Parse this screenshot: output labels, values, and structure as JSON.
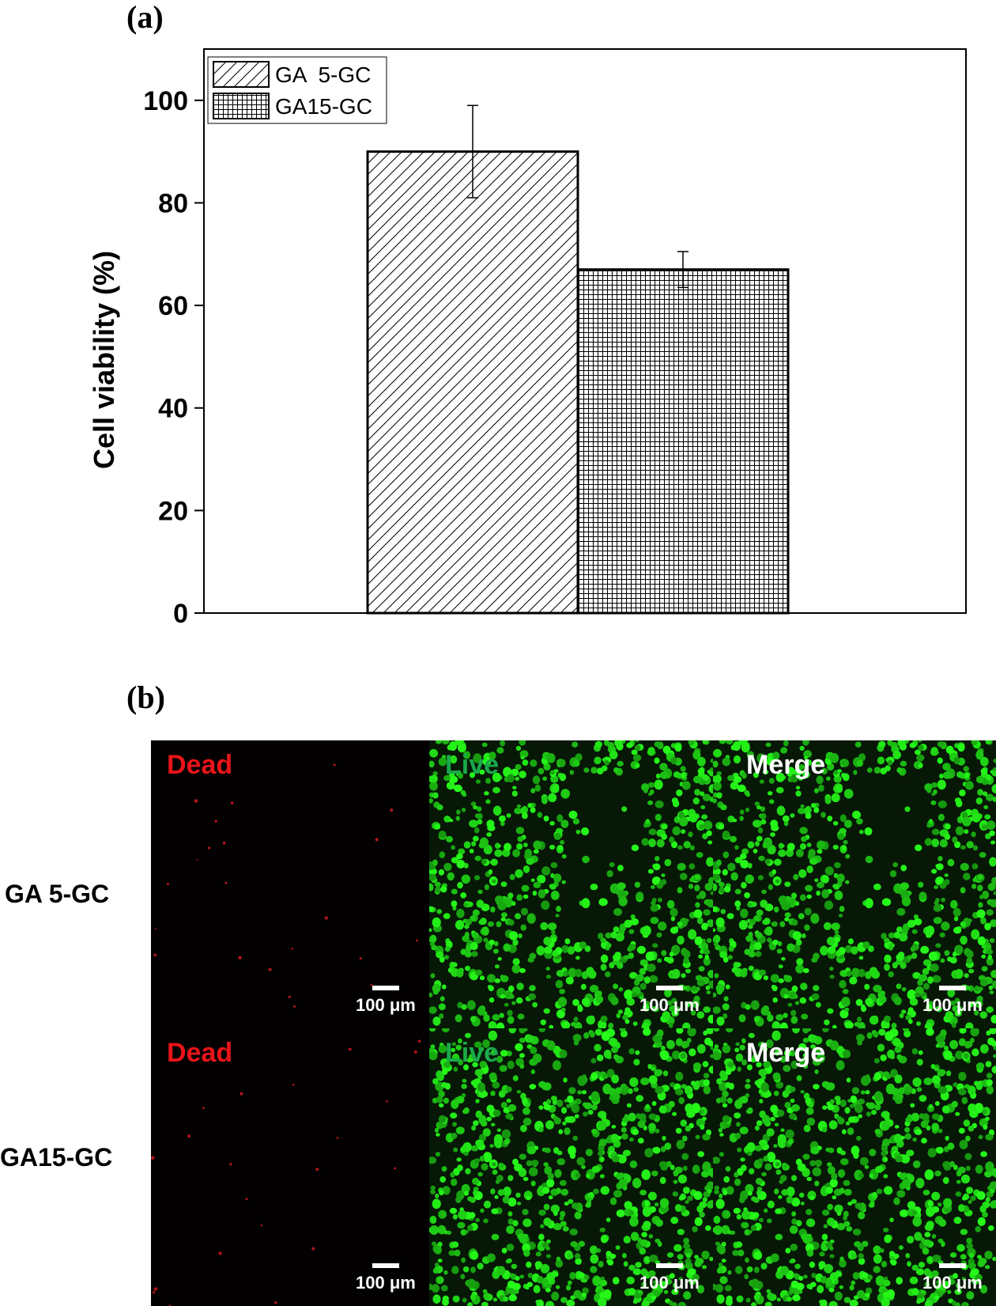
{
  "panels": {
    "a": "(a)",
    "b": "(b)"
  },
  "chart_data": {
    "type": "bar",
    "title": "",
    "xlabel": "",
    "ylabel": "Cell viability (%)",
    "ylim": [
      0,
      110
    ],
    "yticks": [
      0,
      20,
      40,
      60,
      80,
      100
    ],
    "grid": false,
    "legend_position": "top-left",
    "series": [
      {
        "name": "GA  5-GC",
        "value": 90,
        "error": 9,
        "pattern": "diagonal-hatch"
      },
      {
        "name": "GA15-GC",
        "value": 67,
        "error": 3.5,
        "pattern": "crosshatch"
      }
    ]
  },
  "micrographs": {
    "rows": [
      {
        "label": "GA 5-GC"
      },
      {
        "label": "GA15-GC"
      }
    ],
    "columns": [
      {
        "label": "Dead",
        "color": "#e8141a",
        "background": "#020000",
        "stain": "red"
      },
      {
        "label": "Live",
        "color": "#1aa94a",
        "background": "#071807",
        "stain": "green"
      },
      {
        "label": "Merge",
        "color": "#ffffff",
        "background": "#071807",
        "stain": "green"
      }
    ],
    "scale_label": "100 μm"
  }
}
